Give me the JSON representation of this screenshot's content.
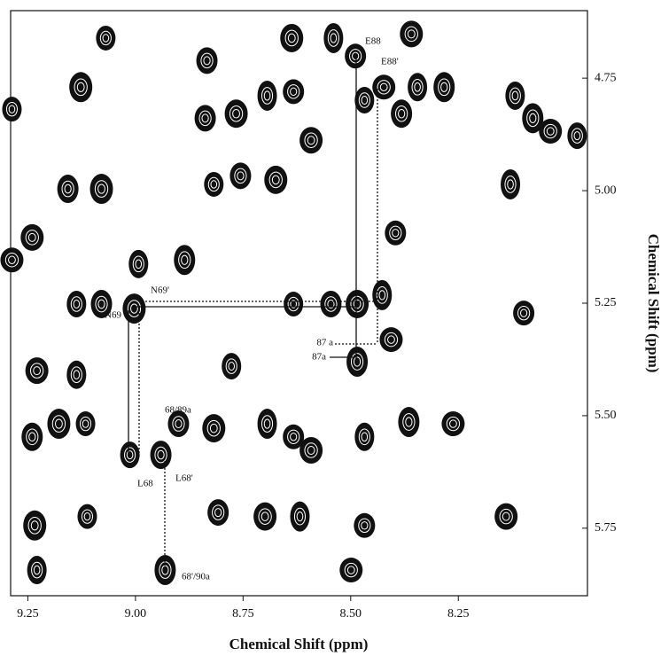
{
  "chart_data": {
    "type": "contour",
    "x_label": "Chemical Shift (ppm)",
    "y_label": "Chemical Shift (ppm)",
    "xlim": [
      9.29,
      7.95
    ],
    "ylim": [
      4.6,
      5.9
    ],
    "xticks": [
      9.25,
      {
        "value": 9,
        "label": "9.00"
      },
      8.75,
      {
        "value": 8.5,
        "label": "8.50"
      },
      8.25
    ],
    "yticks": [
      4.75,
      {
        "value": 5,
        "label": "5.00"
      },
      5.25,
      {
        "value": 5.5,
        "label": "5.50"
      },
      5.75
    ],
    "color": "#111111",
    "x": [
      9.069,
      8.834,
      8.637,
      8.54,
      8.489,
      8.359,
      8.345,
      8.283,
      8.423,
      8.468,
      8.382,
      9.127,
      9.287,
      8.838,
      8.766,
      8.694,
      8.633,
      8.592,
      8.118,
      8.077,
      8.036,
      7.974,
      9.157,
      9.079,
      8.818,
      8.756,
      8.674,
      8.129,
      8.396,
      9.24,
      8.993,
      8.886,
      9.287,
      9.137,
      9.079,
      9.003,
      8.633,
      8.546,
      8.485,
      8.427,
      8.098,
      9.229,
      9.137,
      8.485,
      8.406,
      8.777,
      9.24,
      9.178,
      9.116,
      8.9,
      8.818,
      8.694,
      8.633,
      8.592,
      8.468,
      8.365,
      8.262,
      9.013,
      8.941,
      9.234,
      9.112,
      8.808,
      8.699,
      8.618,
      8.468,
      8.139,
      9.229,
      8.931,
      8.499
    ],
    "y": [
      4.661,
      4.711,
      4.661,
      4.661,
      4.701,
      4.652,
      4.77,
      4.77,
      4.77,
      4.799,
      4.829,
      4.77,
      4.819,
      4.839,
      4.829,
      4.789,
      4.78,
      4.888,
      4.789,
      4.839,
      4.868,
      4.878,
      4.996,
      4.996,
      4.986,
      4.967,
      4.976,
      4.986,
      5.094,
      5.104,
      5.163,
      5.154,
      5.154,
      5.252,
      5.252,
      5.262,
      5.252,
      5.252,
      5.252,
      5.232,
      5.272,
      5.4,
      5.409,
      5.38,
      5.331,
      5.39,
      5.547,
      5.518,
      5.518,
      5.518,
      5.528,
      5.518,
      5.547,
      5.577,
      5.547,
      5.514,
      5.518,
      5.587,
      5.587,
      5.744,
      5.724,
      5.715,
      5.724,
      5.724,
      5.744,
      5.724,
      5.843,
      5.843,
      5.843
    ],
    "annotations": [
      "E88",
      "E88'",
      "N69'",
      "N69",
      "87 a",
      "87a",
      "68/89a",
      "L68",
      "L68'",
      "68'/90a"
    ]
  }
}
